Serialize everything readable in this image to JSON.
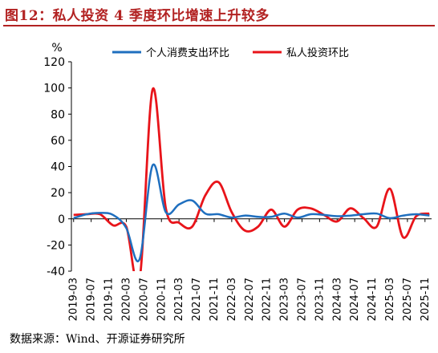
{
  "title": "图12：私人投资 4 季度环比增速上升较多",
  "source": "数据来源：Wind、开源证券研究所",
  "chart_data": {
    "type": "line",
    "title": "图12：私人投资 4 季度环比增速上升较多",
    "ylabel": "%",
    "ylim": [
      -40,
      120
    ],
    "yticks": [
      "-40",
      "-20",
      "0",
      "20",
      "40",
      "60",
      "80",
      "100",
      "120"
    ],
    "x_tick_labels": [
      "2019-03",
      "2019-07",
      "2019-11",
      "2020-03",
      "2020-07",
      "2020-11",
      "2021-03",
      "2021-07",
      "2021-11",
      "2022-03",
      "2022-07",
      "2022-11",
      "2023-03",
      "2023-07",
      "2023-11",
      "2024-03",
      "2024-07",
      "2024-11",
      "2025-03",
      "2025-07",
      "2025-11"
    ],
    "x_start": "2019-03",
    "x_end": "2025-12",
    "grid": false,
    "legend_position": "top-center",
    "series": [
      {
        "name": "个人消费支出环比",
        "color": "#1f6fbf",
        "points": [
          [
            "2019-03",
            0.5
          ],
          [
            "2019-06",
            3.5
          ],
          [
            "2019-09",
            4.5
          ],
          [
            "2019-12",
            3.0
          ],
          [
            "2020-03",
            -7.0
          ],
          [
            "2020-06",
            -31.0
          ],
          [
            "2020-09",
            41.0
          ],
          [
            "2020-12",
            5.0
          ],
          [
            "2021-03",
            11.0
          ],
          [
            "2021-06",
            14.0
          ],
          [
            "2021-09",
            4.0
          ],
          [
            "2021-12",
            3.5
          ],
          [
            "2022-03",
            1.0
          ],
          [
            "2022-06",
            2.5
          ],
          [
            "2022-09",
            1.5
          ],
          [
            "2022-12",
            1.5
          ],
          [
            "2023-03",
            4.0
          ],
          [
            "2023-06",
            1.0
          ],
          [
            "2023-09",
            3.5
          ],
          [
            "2023-12",
            3.0
          ],
          [
            "2024-03",
            2.0
          ],
          [
            "2024-06",
            2.5
          ],
          [
            "2024-09",
            3.5
          ],
          [
            "2024-12",
            4.0
          ],
          [
            "2025-03",
            0.5
          ],
          [
            "2025-06",
            2.5
          ],
          [
            "2025-09",
            3.5
          ],
          [
            "2025-12",
            2.5
          ]
        ]
      },
      {
        "name": "私人投资环比",
        "color": "#e8141a",
        "points": [
          [
            "2019-03",
            3.0
          ],
          [
            "2019-06",
            3.5
          ],
          [
            "2019-09",
            3.5
          ],
          [
            "2019-12",
            -5.0
          ],
          [
            "2020-03",
            -6.0
          ],
          [
            "2020-06",
            -47.0
          ],
          [
            "2020-09",
            99.0
          ],
          [
            "2020-12",
            8.0
          ],
          [
            "2021-03",
            -3.0
          ],
          [
            "2021-06",
            -6.0
          ],
          [
            "2021-09",
            18.0
          ],
          [
            "2021-12",
            28.0
          ],
          [
            "2022-03",
            5.0
          ],
          [
            "2022-06",
            -9.0
          ],
          [
            "2022-09",
            -6.0
          ],
          [
            "2022-12",
            7.0
          ],
          [
            "2023-03",
            -6.0
          ],
          [
            "2023-06",
            7.0
          ],
          [
            "2023-09",
            8.0
          ],
          [
            "2023-12",
            3.0
          ],
          [
            "2024-03",
            -2.0
          ],
          [
            "2024-06",
            8.0
          ],
          [
            "2024-09",
            0.5
          ],
          [
            "2024-12",
            -6.0
          ],
          [
            "2025-03",
            23.0
          ],
          [
            "2025-06",
            -14.0
          ],
          [
            "2025-09",
            2.0
          ],
          [
            "2025-12",
            4.0
          ]
        ]
      }
    ]
  }
}
